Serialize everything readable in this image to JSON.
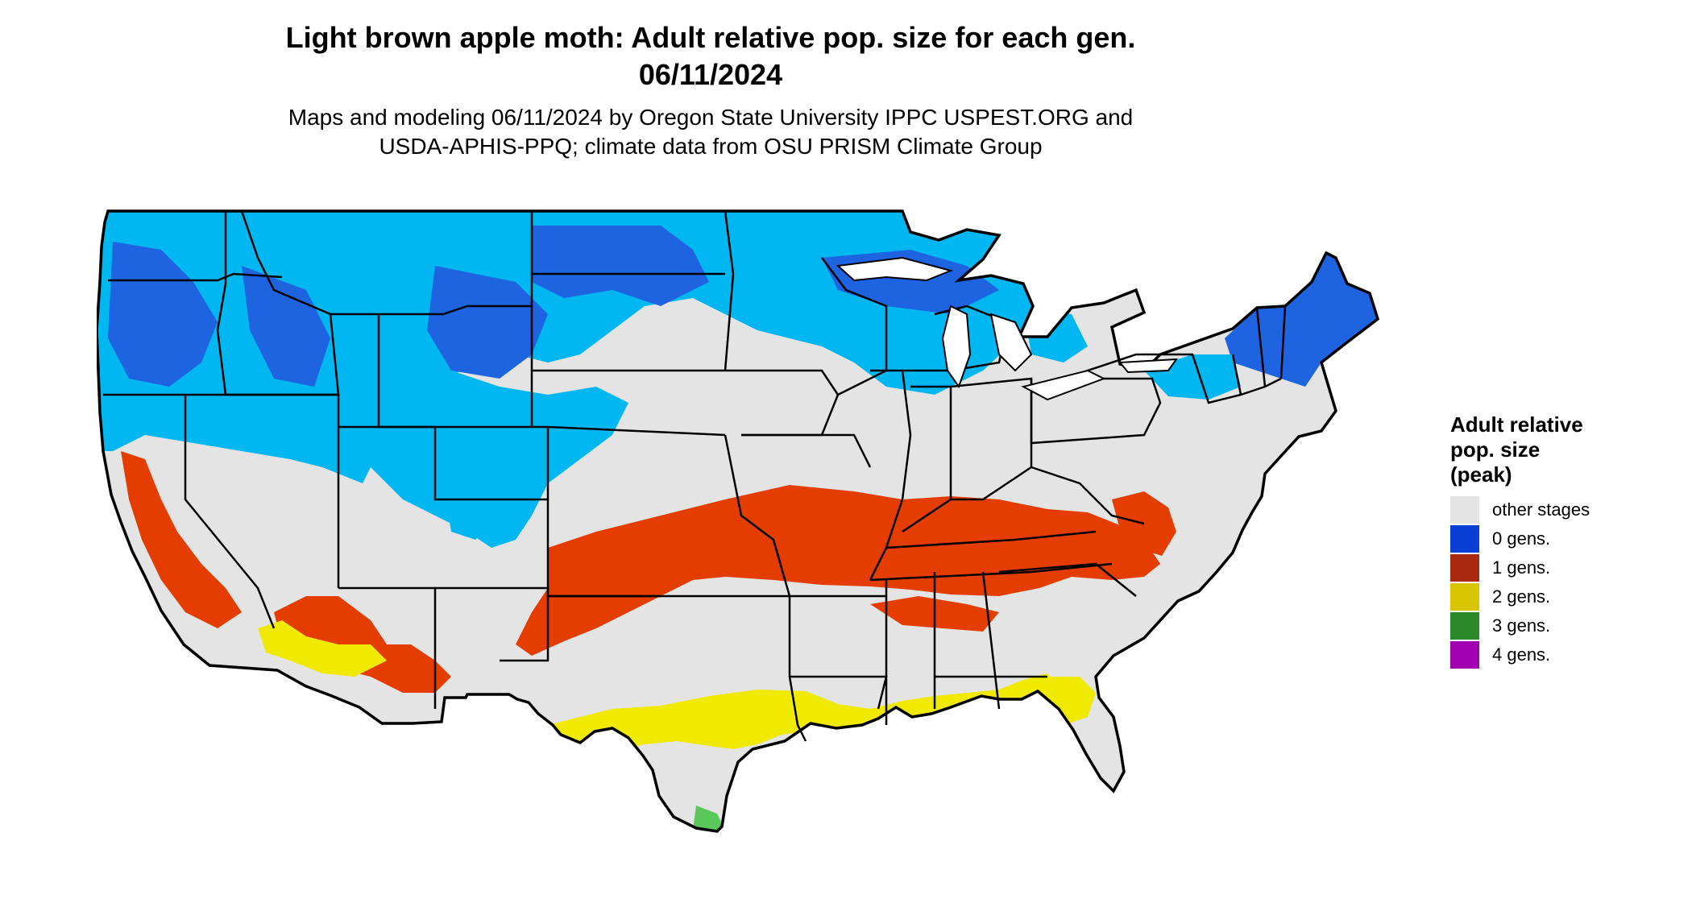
{
  "title": {
    "line1": "Light brown apple moth: Adult relative pop. size for each gen.",
    "line2": "06/11/2024"
  },
  "subtitle": {
    "line1": "Maps and modeling 06/11/2024 by Oregon State University IPPC USPEST.ORG and",
    "line2": "USDA-APHIS-PPQ; climate data from OSU PRISM Climate Group"
  },
  "legend": {
    "title_line1": "Adult relative",
    "title_line2": "pop. size",
    "title_line3": "(peak)",
    "items": [
      {
        "label": "other stages",
        "color": "#e4e4e4"
      },
      {
        "label": "0 gens.",
        "color": "#0a3fd6"
      },
      {
        "label": "1 gens.",
        "color": "#a82810"
      },
      {
        "label": "2 gens.",
        "color": "#d8c400"
      },
      {
        "label": "3 gens.",
        "color": "#2a8a2a"
      },
      {
        "label": "4 gens.",
        "color": "#a000b0"
      }
    ]
  },
  "map_colors": {
    "land": "#e4e4e4",
    "zero_gen_light": "#00b7f2",
    "zero_gen_dark": "#1e63e0",
    "one_gen": "#e53d00",
    "two_gen": "#f0ea00",
    "three_gen": "#5ac85a",
    "border": "#000000"
  }
}
